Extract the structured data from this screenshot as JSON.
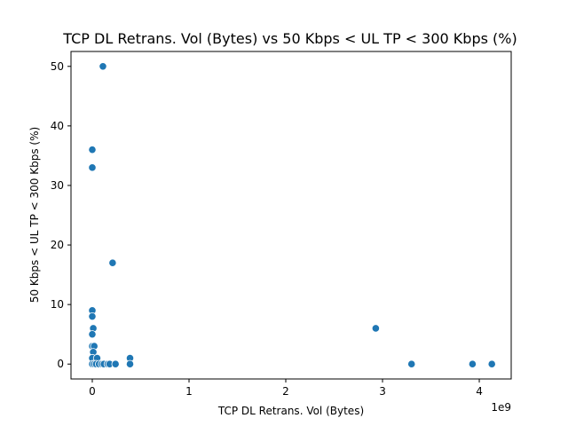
{
  "chart_data": {
    "type": "scatter",
    "title": "TCP DL Retrans. Vol (Bytes) vs 50 Kbps < UL TP < 300 Kbps (%)",
    "xlabel": "TCP DL Retrans. Vol (Bytes)",
    "ylabel": "50 Kbps < UL TP < 300 Kbps (%)",
    "x_offset_label": "1e9",
    "xlim": [
      -0.22,
      4.33
    ],
    "ylim": [
      -2.5,
      52.5
    ],
    "xticks": [
      0,
      1,
      2,
      3,
      4
    ],
    "xtick_labels": [
      "0",
      "1",
      "2",
      "3",
      "4"
    ],
    "yticks": [
      0,
      10,
      20,
      30,
      40,
      50
    ],
    "ytick_labels": [
      "0",
      "10",
      "20",
      "30",
      "40",
      "50"
    ],
    "grid": false,
    "color": "#1f77b4",
    "points": [
      {
        "x": 0.11,
        "y": 50
      },
      {
        "x": 0.0,
        "y": 36
      },
      {
        "x": 0.0,
        "y": 33
      },
      {
        "x": 0.21,
        "y": 17
      },
      {
        "x": 0.0,
        "y": 9
      },
      {
        "x": 0.0,
        "y": 8
      },
      {
        "x": 0.01,
        "y": 6
      },
      {
        "x": 0.0,
        "y": 5
      },
      {
        "x": 0.0,
        "y": 3
      },
      {
        "x": 0.02,
        "y": 3
      },
      {
        "x": 0.01,
        "y": 2
      },
      {
        "x": 0.0,
        "y": 1
      },
      {
        "x": 0.05,
        "y": 1
      },
      {
        "x": 0.39,
        "y": 1
      },
      {
        "x": 0.0,
        "y": 0
      },
      {
        "x": 0.02,
        "y": 0
      },
      {
        "x": 0.04,
        "y": 0
      },
      {
        "x": 0.07,
        "y": 0
      },
      {
        "x": 0.1,
        "y": 0
      },
      {
        "x": 0.12,
        "y": 0
      },
      {
        "x": 0.16,
        "y": 0
      },
      {
        "x": 0.18,
        "y": 0
      },
      {
        "x": 0.24,
        "y": 0
      },
      {
        "x": 0.39,
        "y": 0
      },
      {
        "x": 2.93,
        "y": 6
      },
      {
        "x": 3.3,
        "y": 0
      },
      {
        "x": 3.93,
        "y": 0
      },
      {
        "x": 4.13,
        "y": 0
      }
    ]
  }
}
